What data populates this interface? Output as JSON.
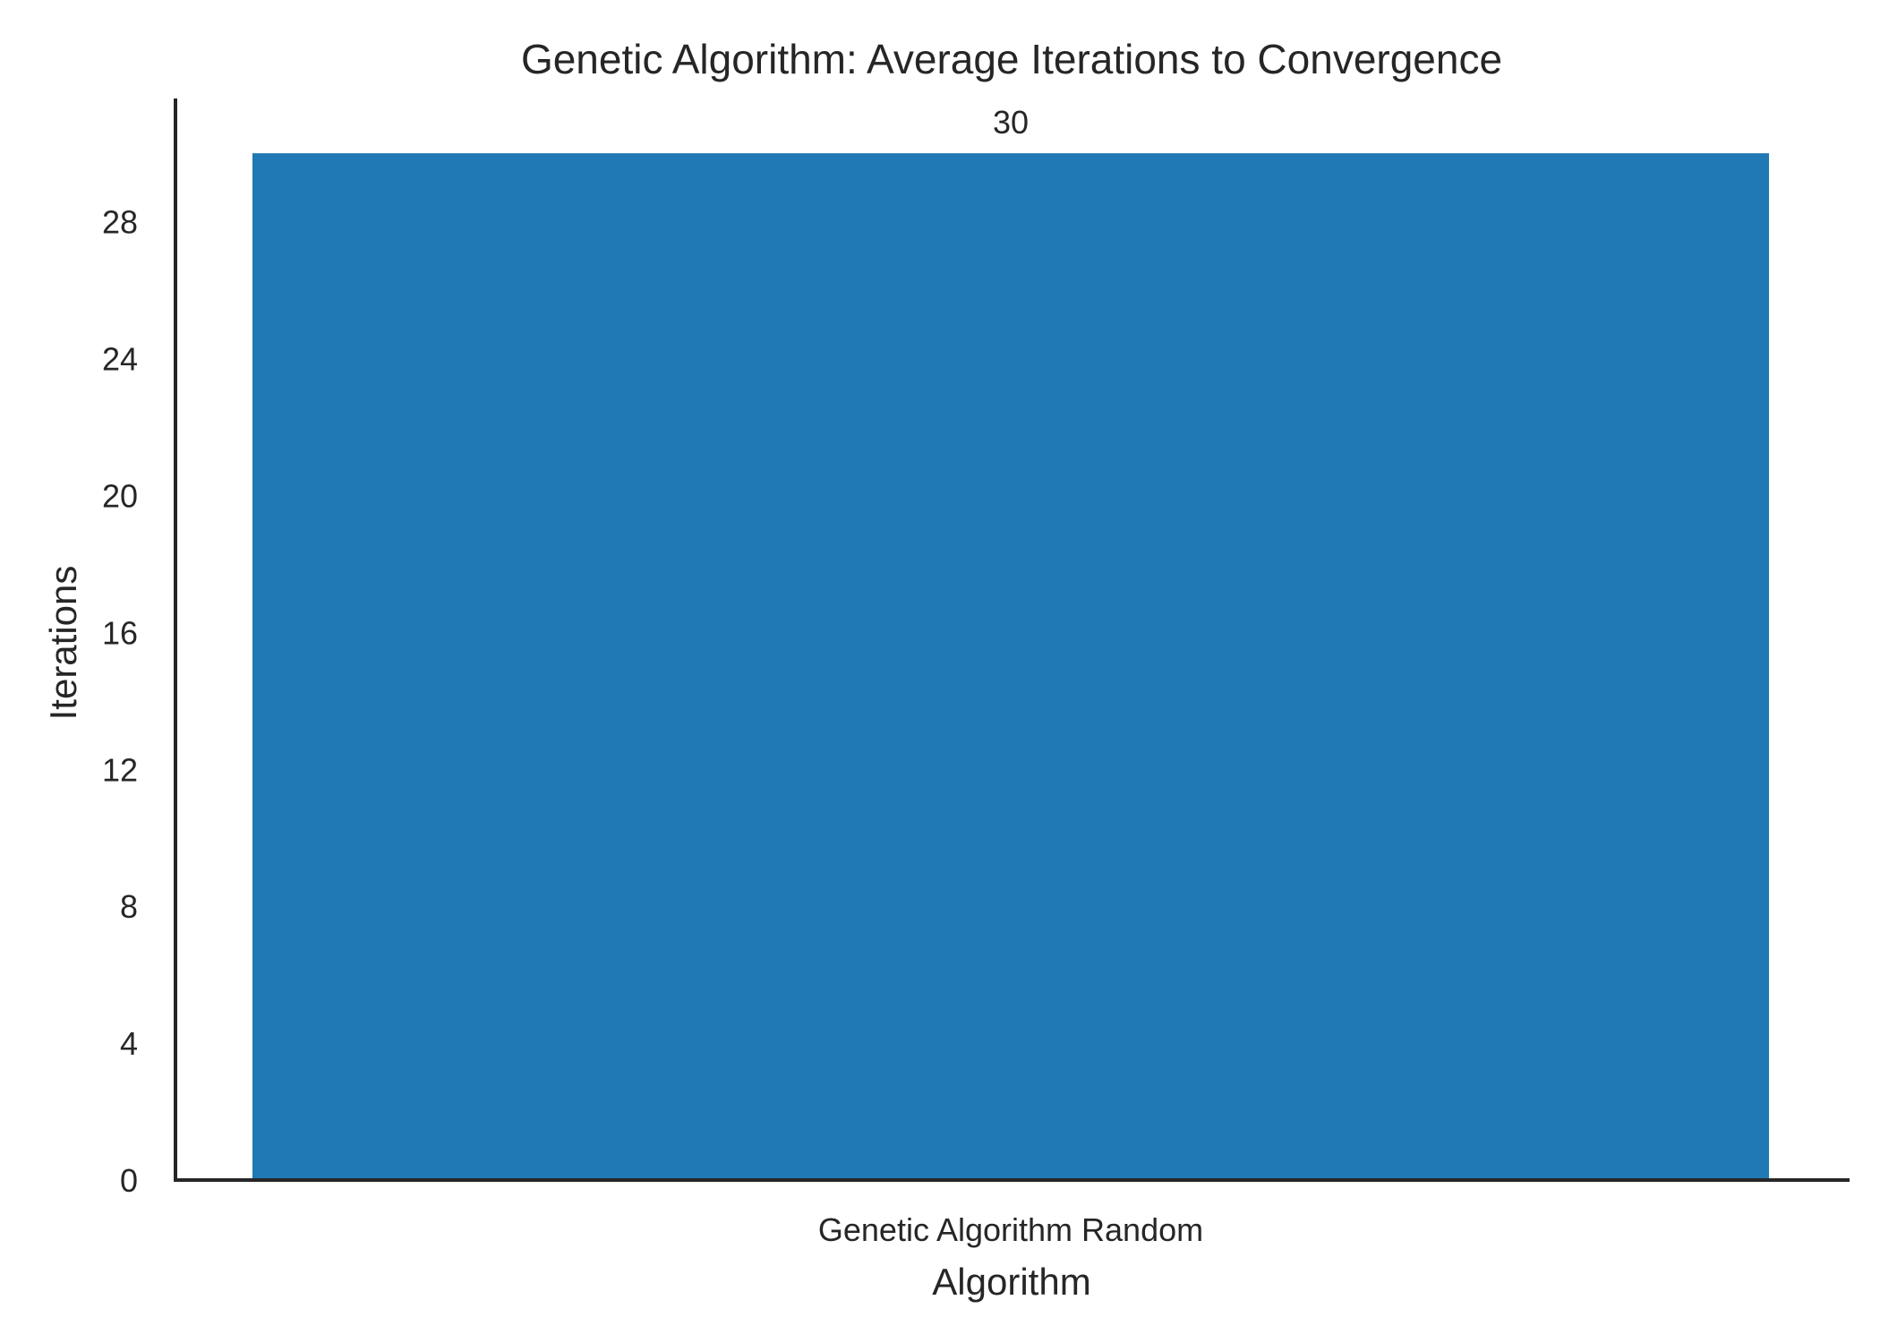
{
  "chart_data": {
    "type": "bar",
    "title": "Genetic Algorithm: Average Iterations to Convergence",
    "xlabel": "Algorithm",
    "ylabel": "Iterations",
    "categories": [
      "Genetic Algorithm Random"
    ],
    "values": [
      30
    ],
    "data_labels": [
      "30"
    ],
    "ylim": [
      0,
      31.6
    ],
    "yticks": [
      0,
      4,
      8,
      12,
      16,
      20,
      24,
      28
    ],
    "grid": false,
    "legend": "none",
    "colors": {
      "bar": "#2078b4",
      "axis": "#262626",
      "text": "#262626",
      "background": "#ffffff"
    }
  }
}
